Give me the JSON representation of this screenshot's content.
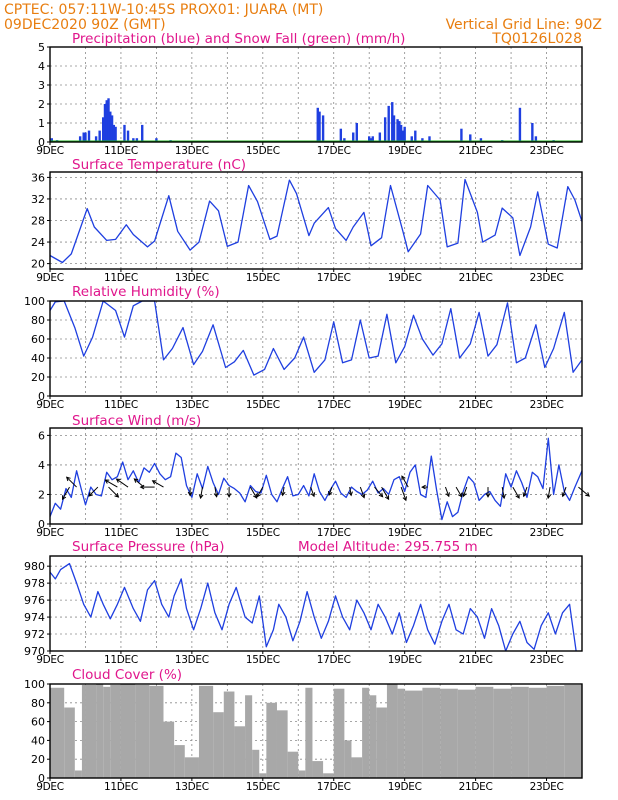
{
  "header": {
    "line1": "CPTEC:   057:11W-10:45S   PROX01: JUARA (MT)",
    "line2_left": "09DEC2020 90Z (GMT)",
    "line2_right": "Vertical Grid Line: 90Z",
    "line3_right": "TQ0126L028"
  },
  "x_axis": {
    "labels": [
      "9DEC",
      "11DEC",
      "13DEC",
      "15DEC",
      "17DEC",
      "19DEC",
      "21DEC",
      "23DEC"
    ],
    "label_days": [
      0,
      2,
      4,
      6,
      8,
      10,
      12,
      14
    ],
    "range_days": [
      0,
      15
    ]
  },
  "panels": {
    "precip": {
      "title": "Precipitation (blue) and Snow Fall (green) (mm/h)"
    },
    "temp": {
      "title": "Surface Temperature (nC)"
    },
    "rh": {
      "title": "Relative Humidity (%)"
    },
    "wind": {
      "title": "Surface Wind (m/s)"
    },
    "pressure": {
      "title": "Surface Pressure (hPa)",
      "annotation": "Model Altitude: 295.755 m"
    },
    "cloud": {
      "title": "Cloud Cover (%)"
    }
  },
  "chart_data": [
    {
      "id": "precip",
      "type": "bar",
      "ylim": [
        0,
        5
      ],
      "yticks": [
        0,
        1,
        2,
        3,
        4,
        5
      ],
      "series": [
        {
          "name": "Precipitation",
          "color": "#1f3fe0",
          "x": [
            0.05,
            0.2,
            0.85,
            0.95,
            1.0,
            1.1,
            1.3,
            1.4,
            1.5,
            1.55,
            1.6,
            1.65,
            1.7,
            1.75,
            1.8,
            1.85,
            2.1,
            2.2,
            2.35,
            2.45,
            2.6,
            3.0,
            3.4,
            7.55,
            7.6,
            7.7,
            8.2,
            8.3,
            8.55,
            8.65,
            9.0,
            9.05,
            9.1,
            9.3,
            9.45,
            9.55,
            9.65,
            9.7,
            9.8,
            9.85,
            9.9,
            9.95,
            10.0,
            10.2,
            10.3,
            10.5,
            10.7,
            11.6,
            11.85,
            12.15,
            12.75,
            13.25,
            13.6,
            13.7,
            14.2
          ],
          "y": [
            0.2,
            0.1,
            0.3,
            0.5,
            0.5,
            0.6,
            0.3,
            0.6,
            1.3,
            2.0,
            2.2,
            2.3,
            1.6,
            1.4,
            0.9,
            0.8,
            0.9,
            0.6,
            0.2,
            0.2,
            0.9,
            0.2,
            0.1,
            1.8,
            1.6,
            1.4,
            0.7,
            0.2,
            0.5,
            1.0,
            0.3,
            0.2,
            0.3,
            0.5,
            1.3,
            1.9,
            2.1,
            1.4,
            1.2,
            1.1,
            0.9,
            0.6,
            0.8,
            0.3,
            0.6,
            0.2,
            0.3,
            0.7,
            0.4,
            0.2,
            0.1,
            1.8,
            1.0,
            0.3,
            0.1
          ]
        },
        {
          "name": "Snow Fall",
          "color": "#18b018",
          "constant": 0
        }
      ]
    },
    {
      "id": "temp",
      "type": "line",
      "color": "#1f3fe0",
      "ylim": [
        19,
        37
      ],
      "yticks": [
        20,
        24,
        28,
        32,
        36
      ],
      "x": [
        0,
        0.35,
        0.6,
        1.05,
        1.25,
        1.6,
        1.85,
        2.15,
        2.35,
        2.75,
        2.95,
        3.35,
        3.6,
        3.95,
        4.2,
        4.5,
        4.75,
        5.0,
        5.3,
        5.6,
        5.85,
        6.2,
        6.4,
        6.75,
        6.95,
        7.3,
        7.45,
        7.85,
        8.05,
        8.35,
        8.55,
        8.85,
        9.05,
        9.35,
        9.6,
        9.95,
        10.1,
        10.45,
        10.65,
        11.0,
        11.2,
        11.5,
        11.7,
        12.05,
        12.2,
        12.55,
        12.75,
        13.05,
        13.25,
        13.55,
        13.75,
        14.05,
        14.3,
        14.6,
        14.8,
        15.0
      ],
      "y": [
        21.5,
        20.2,
        21.8,
        30.2,
        26.8,
        24.3,
        24.5,
        27.2,
        25.4,
        23.1,
        24.2,
        32.6,
        26.0,
        22.5,
        24.0,
        31.6,
        29.8,
        23.2,
        24.0,
        34.5,
        31.5,
        24.5,
        25.1,
        35.5,
        33.0,
        25.2,
        27.5,
        30.4,
        26.5,
        24.3,
        26.8,
        29.5,
        23.3,
        24.8,
        34.5,
        26.0,
        22.2,
        25.5,
        34.5,
        31.8,
        23.1,
        23.8,
        35.6,
        29.5,
        24.0,
        25.3,
        30.3,
        28.5,
        21.5,
        26.8,
        33.3,
        23.6,
        22.9,
        34.3,
        31.8,
        27.8
      ]
    },
    {
      "id": "rh",
      "type": "line",
      "color": "#1f3fe0",
      "ylim": [
        0,
        100
      ],
      "yticks": [
        0,
        20,
        40,
        60,
        80,
        100
      ],
      "x": [
        0,
        0.15,
        0.4,
        0.7,
        0.95,
        1.2,
        1.5,
        1.85,
        2.1,
        2.35,
        2.6,
        2.95,
        3.2,
        3.45,
        3.75,
        4.05,
        4.3,
        4.6,
        4.95,
        5.2,
        5.45,
        5.75,
        6.05,
        6.3,
        6.6,
        6.9,
        7.15,
        7.45,
        7.75,
        8.0,
        8.25,
        8.5,
        8.75,
        9.0,
        9.25,
        9.5,
        9.75,
        10.0,
        10.25,
        10.5,
        10.8,
        11.05,
        11.3,
        11.55,
        11.85,
        12.1,
        12.35,
        12.6,
        12.9,
        13.15,
        13.4,
        13.7,
        13.95,
        14.2,
        14.5,
        14.75,
        15.0
      ],
      "y": [
        90,
        99,
        100,
        72,
        42,
        62,
        100,
        90,
        62,
        95,
        100,
        100,
        38,
        50,
        72,
        33,
        47,
        75,
        30,
        36,
        48,
        22,
        28,
        50,
        28,
        40,
        62,
        25,
        38,
        78,
        35,
        38,
        80,
        40,
        42,
        86,
        35,
        52,
        85,
        60,
        43,
        55,
        92,
        40,
        55,
        88,
        42,
        54,
        98,
        35,
        40,
        75,
        30,
        50,
        88,
        25,
        38
      ]
    },
    {
      "id": "wind",
      "type": "line",
      "color": "#1f3fe0",
      "ylim": [
        0,
        6.5
      ],
      "yticks": [
        0,
        2,
        4,
        6
      ],
      "x": [
        0,
        0.15,
        0.3,
        0.45,
        0.6,
        0.75,
        0.9,
        1.0,
        1.15,
        1.3,
        1.45,
        1.6,
        1.75,
        1.9,
        2.05,
        2.2,
        2.35,
        2.5,
        2.65,
        2.8,
        2.95,
        3.1,
        3.25,
        3.4,
        3.55,
        3.7,
        3.85,
        4.0,
        4.15,
        4.3,
        4.45,
        4.6,
        4.75,
        4.9,
        5.05,
        5.2,
        5.35,
        5.5,
        5.65,
        5.8,
        5.95,
        6.1,
        6.25,
        6.4,
        6.55,
        6.7,
        6.85,
        7.0,
        7.15,
        7.3,
        7.45,
        7.6,
        7.75,
        7.9,
        8.05,
        8.2,
        8.35,
        8.5,
        8.65,
        8.8,
        8.95,
        9.1,
        9.25,
        9.4,
        9.55,
        9.7,
        9.85,
        10.0,
        10.15,
        10.3,
        10.45,
        10.6,
        10.75,
        10.9,
        11.05,
        11.2,
        11.35,
        11.5,
        11.65,
        11.8,
        11.95,
        12.1,
        12.25,
        12.4,
        12.55,
        12.7,
        12.85,
        13.0,
        13.15,
        13.3,
        13.45,
        13.6,
        13.75,
        13.9,
        14.05,
        14.2,
        14.35,
        14.5,
        14.65,
        14.8,
        15.0
      ],
      "y": [
        0.5,
        1.4,
        1.0,
        2.4,
        1.8,
        3.6,
        2.2,
        1.3,
        2.5,
        2.0,
        1.9,
        3.5,
        3.0,
        3.2,
        4.2,
        3.0,
        3.6,
        2.8,
        3.8,
        3.5,
        4.1,
        3.4,
        3.0,
        3.2,
        4.8,
        4.5,
        2.6,
        1.8,
        3.4,
        2.4,
        3.9,
        2.8,
        2.0,
        3.1,
        2.6,
        2.4,
        2.1,
        1.5,
        2.6,
        2.2,
        2.1,
        3.3,
        2.0,
        1.5,
        2.4,
        3.2,
        1.9,
        2.0,
        2.6,
        1.9,
        3.4,
        2.2,
        1.6,
        2.3,
        2.9,
        2.1,
        1.8,
        2.5,
        2.2,
        2.0,
        2.3,
        2.9,
        2.1,
        2.4,
        2.0,
        3.0,
        3.2,
        2.2,
        3.5,
        4.0,
        2.0,
        1.8,
        4.6,
        2.3,
        0.3,
        1.5,
        0.5,
        0.8,
        2.2,
        3.2,
        2.8,
        1.6,
        2.0,
        2.2,
        1.6,
        1.2,
        3.4,
        2.5,
        3.6,
        2.8,
        1.8,
        3.5,
        3.2,
        2.4,
        5.8,
        2.0,
        4.0,
        2.2,
        1.6,
        2.5,
        3.6
      ],
      "arrows": [
        {
          "x": 0.55,
          "dir": 210,
          "mag": 1.0
        },
        {
          "x": 0.75,
          "dir": 315,
          "mag": 1.0
        },
        {
          "x": 1.35,
          "dir": 225,
          "mag": 0.9
        },
        {
          "x": 1.65,
          "dir": 135,
          "mag": 1.0
        },
        {
          "x": 1.9,
          "dir": 300,
          "mag": 1.0
        },
        {
          "x": 2.2,
          "dir": 305,
          "mag": 1.0
        },
        {
          "x": 2.65,
          "dir": 310,
          "mag": 0.9
        },
        {
          "x": 2.95,
          "dir": 270,
          "mag": 1.0
        },
        {
          "x": 3.2,
          "dir": 300,
          "mag": 0.9
        },
        {
          "x": 3.95,
          "dir": 180,
          "mag": 0.6
        },
        {
          "x": 4.3,
          "dir": 190,
          "mag": 0.8
        },
        {
          "x": 4.65,
          "dir": 170,
          "mag": 0.7
        },
        {
          "x": 5.05,
          "dir": 180,
          "mag": 0.7
        },
        {
          "x": 5.65,
          "dir": 150,
          "mag": 0.9
        },
        {
          "x": 6.0,
          "dir": 210,
          "mag": 0.8
        },
        {
          "x": 6.6,
          "dir": 190,
          "mag": 0.6
        },
        {
          "x": 7.35,
          "dir": 160,
          "mag": 0.7
        },
        {
          "x": 7.95,
          "dir": 200,
          "mag": 0.6
        },
        {
          "x": 8.45,
          "dir": 170,
          "mag": 0.6
        },
        {
          "x": 8.75,
          "dir": 160,
          "mag": 0.8
        },
        {
          "x": 9.15,
          "dir": 140,
          "mag": 0.9
        },
        {
          "x": 9.35,
          "dir": 150,
          "mag": 1.0
        },
        {
          "x": 9.9,
          "dir": 160,
          "mag": 1.0
        },
        {
          "x": 10.1,
          "dir": 330,
          "mag": 0.9
        },
        {
          "x": 10.65,
          "dir": 270,
          "mag": 0.4
        },
        {
          "x": 11.15,
          "dir": 160,
          "mag": 0.7
        },
        {
          "x": 11.45,
          "dir": 150,
          "mag": 0.8
        },
        {
          "x": 11.75,
          "dir": 200,
          "mag": 0.7
        },
        {
          "x": 12.35,
          "dir": 180,
          "mag": 0.7
        },
        {
          "x": 12.75,
          "dir": 170,
          "mag": 0.8
        },
        {
          "x": 13.05,
          "dir": 150,
          "mag": 0.9
        },
        {
          "x": 13.45,
          "dir": 200,
          "mag": 0.7
        },
        {
          "x": 14.1,
          "dir": 190,
          "mag": 0.8
        },
        {
          "x": 14.55,
          "dir": 200,
          "mag": 0.7
        },
        {
          "x": 14.9,
          "dir": 130,
          "mag": 1.0
        }
      ]
    },
    {
      "id": "pressure",
      "type": "line",
      "color": "#1f3fe0",
      "ylim": [
        970,
        981.2
      ],
      "yticks": [
        970,
        972,
        974,
        976,
        978,
        980
      ],
      "x": [
        0,
        0.15,
        0.3,
        0.55,
        0.75,
        0.95,
        1.15,
        1.35,
        1.5,
        1.7,
        1.9,
        2.1,
        2.35,
        2.55,
        2.75,
        2.95,
        3.15,
        3.35,
        3.5,
        3.7,
        3.85,
        4.05,
        4.25,
        4.45,
        4.65,
        4.85,
        5.05,
        5.25,
        5.5,
        5.7,
        5.9,
        6.1,
        6.3,
        6.45,
        6.65,
        6.85,
        7.05,
        7.25,
        7.45,
        7.65,
        7.85,
        8.05,
        8.25,
        8.45,
        8.65,
        8.85,
        9.05,
        9.25,
        9.45,
        9.65,
        9.85,
        10.05,
        10.25,
        10.45,
        10.65,
        10.85,
        11.05,
        11.25,
        11.45,
        11.65,
        11.85,
        12.05,
        12.25,
        12.45,
        12.65,
        12.85,
        13.05,
        13.25,
        13.45,
        13.65,
        13.85,
        14.05,
        14.25,
        14.45,
        14.65,
        14.85,
        15.0
      ],
      "y": [
        979.3,
        978.5,
        979.6,
        980.3,
        978.0,
        975.5,
        974.0,
        977.0,
        975.5,
        973.8,
        975.5,
        977.5,
        975.0,
        973.5,
        977.2,
        978.3,
        975.5,
        974.0,
        976.5,
        978.5,
        975.0,
        972.5,
        975.0,
        978.0,
        974.5,
        972.5,
        975.5,
        977.5,
        974.0,
        973.3,
        976.5,
        970.5,
        972.5,
        975.5,
        974.0,
        971.2,
        973.5,
        977.0,
        974.0,
        971.5,
        973.5,
        976.5,
        974.0,
        972.5,
        976.0,
        974.5,
        972.5,
        975.5,
        974.0,
        972.0,
        974.5,
        971.0,
        973.0,
        975.5,
        972.5,
        970.8,
        973.5,
        975.5,
        972.5,
        972.0,
        975.0,
        974.0,
        971.5,
        975.0,
        973.0,
        970.0,
        972.0,
        973.5,
        971.0,
        970.2,
        973.0,
        974.5,
        972.0,
        974.5,
        975.5,
        969.5,
        969.0
      ]
    },
    {
      "id": "cloud",
      "type": "bar",
      "color": "#a8a8a8",
      "ylim": [
        0,
        100
      ],
      "yticks": [
        0,
        20,
        40,
        60,
        80,
        100
      ],
      "x": [
        0,
        0.4,
        0.7,
        0.9,
        1.0,
        1.3,
        1.5,
        1.7,
        2.0,
        2.4,
        2.8,
        3.2,
        3.5,
        3.8,
        4.2,
        4.6,
        4.9,
        5.2,
        5.5,
        5.7,
        5.9,
        6.1,
        6.4,
        6.7,
        7.0,
        7.2,
        7.4,
        7.7,
        8.0,
        8.3,
        8.5,
        8.8,
        9.0,
        9.2,
        9.5,
        9.8,
        10.0,
        10.5,
        11.0,
        11.5,
        12.0,
        12.5,
        13.0,
        13.5,
        14.0,
        14.5
      ],
      "y": [
        96,
        75,
        8,
        99,
        99,
        100,
        97,
        99,
        100,
        99,
        98,
        60,
        35,
        22,
        98,
        70,
        92,
        55,
        88,
        30,
        5,
        80,
        72,
        28,
        8,
        96,
        18,
        5,
        95,
        40,
        22,
        96,
        88,
        75,
        100,
        95,
        93,
        96,
        95,
        94,
        97,
        95,
        97,
        96,
        98,
        99
      ]
    }
  ]
}
